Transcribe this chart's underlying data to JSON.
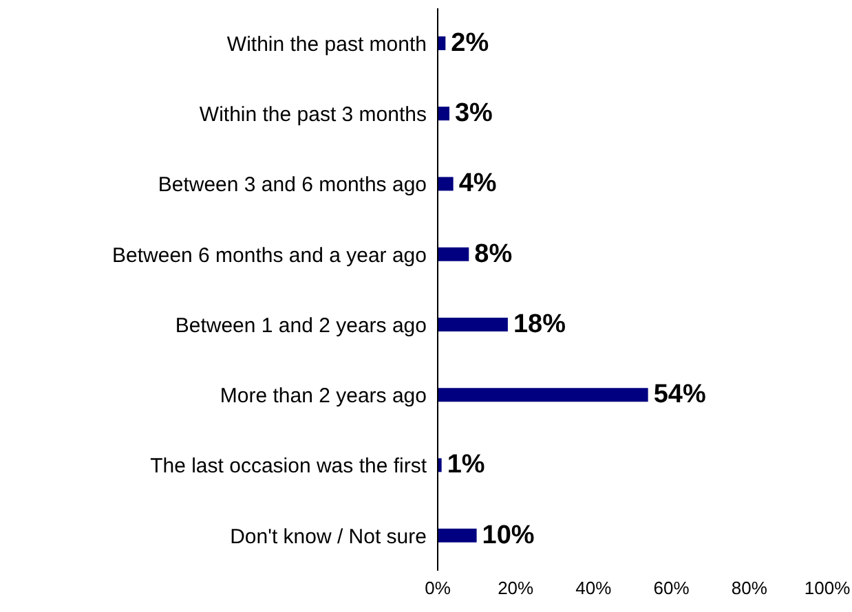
{
  "chart_data": {
    "type": "bar",
    "orientation": "horizontal",
    "categories": [
      "Within the past month",
      "Within the past 3 months",
      "Between 3 and 6 months ago",
      "Between 6 months and a year ago",
      "Between 1 and 2 years ago",
      "More than 2 years ago",
      "The last occasion was the first",
      "Don't know / Not sure"
    ],
    "values": [
      2,
      3,
      4,
      8,
      18,
      54,
      1,
      10
    ],
    "value_labels": [
      "2%",
      "3%",
      "4%",
      "8%",
      "18%",
      "54%",
      "1%",
      "10%"
    ],
    "color": "#000080",
    "xlim": [
      0,
      100
    ],
    "xticks": [
      {
        "value": 0,
        "label": "0%"
      },
      {
        "value": 20,
        "label": "20%"
      },
      {
        "value": 40,
        "label": "40%"
      },
      {
        "value": 60,
        "label": "60%"
      },
      {
        "value": 80,
        "label": "80%"
      },
      {
        "value": 100,
        "label": "100%"
      }
    ],
    "grid": false,
    "legend": false
  }
}
